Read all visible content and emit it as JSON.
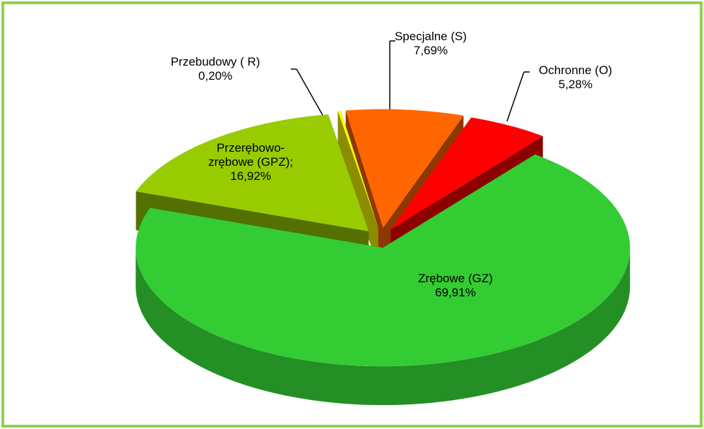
{
  "chart_data": {
    "type": "pie",
    "categories": [
      "Zrębowe (GZ)",
      "Przerębowo-zrębowe (GPZ);",
      "Przebudowy ( R)",
      "Specjalne (S)",
      "Ochronne (O)"
    ],
    "values": [
      69.91,
      16.92,
      0.2,
      7.69,
      5.28
    ],
    "value_labels": [
      "69,91%",
      "16,92%",
      "0,20%",
      "7,69%",
      "5,28%"
    ],
    "colors": [
      "#33cc33",
      "#99cc00",
      "#ffff00",
      "#ff6600",
      "#ff0000"
    ]
  }
}
